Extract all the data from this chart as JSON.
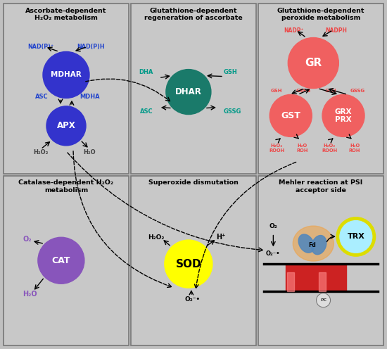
{
  "bg_color": "#c0c0c0",
  "panel_color": "#c8c8c8",
  "border_color": "#888888",
  "panel_titles": [
    [
      0,
      0,
      "Ascorbate-dependent\nH₂O₂ metabolism"
    ],
    [
      0,
      1,
      "Glutathione-dependent\nregeneration of ascorbate"
    ],
    [
      0,
      2,
      "Glutathione-dependent\nperoxide metabolism"
    ],
    [
      1,
      0,
      "Catalase-dependent H₂O₂\nmetabolism"
    ],
    [
      1,
      1,
      "Superoxide dismutation"
    ],
    [
      1,
      2,
      "Mehler reaction at PSI\nacceptor side"
    ]
  ],
  "mdhar_color": "#3333cc",
  "apx_color": "#3333cc",
  "dhar_color": "#1a7a6a",
  "gr_color": "#f06060",
  "gst_color": "#f06060",
  "grx_color": "#f06060",
  "cat_color": "#8855bb",
  "sod_color": "#ffff00",
  "trx_color": "#aaeeff",
  "trx_border": "#dddd00",
  "blue_label": "#2244cc",
  "teal_label": "#009988",
  "red_label": "#ee4444",
  "purple_label": "#8855bb"
}
